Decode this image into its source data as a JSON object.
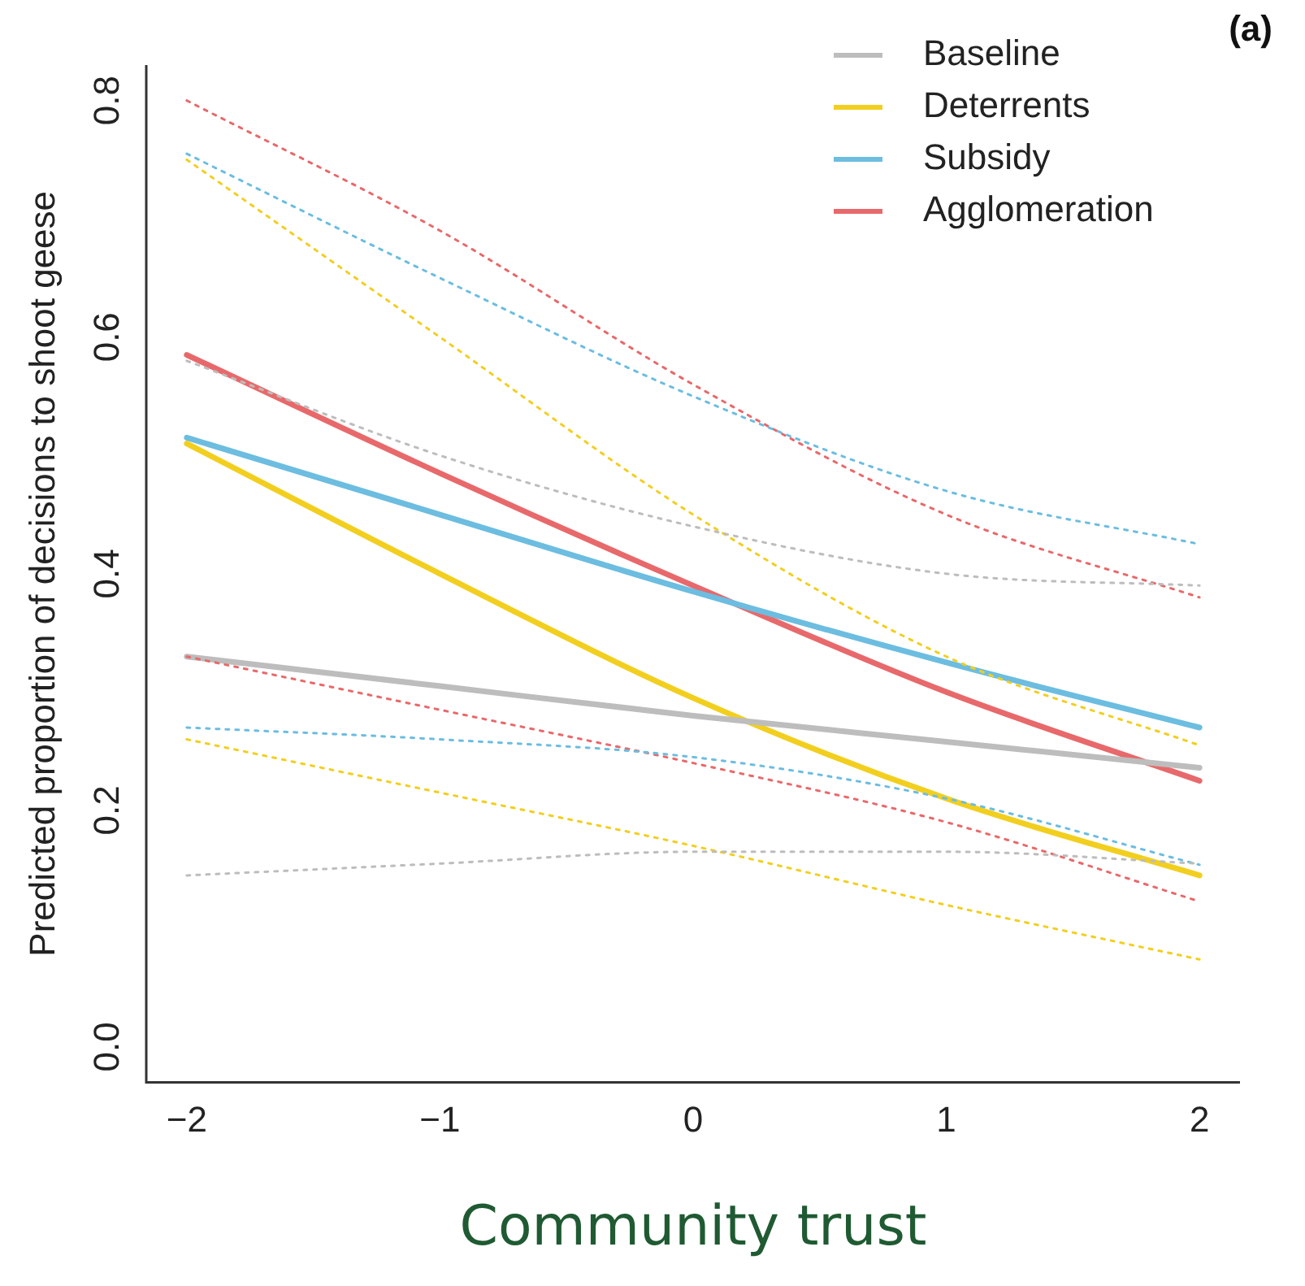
{
  "chart_data": {
    "type": "line",
    "xlabel": "Community trust",
    "ylabel": "Predicted proportion of decisions to shoot geese",
    "annotations": [
      "(a)"
    ],
    "x": [
      -2,
      -1,
      0,
      1,
      2
    ],
    "series": [
      {
        "name": "Baseline",
        "color": "#bdbdbd",
        "values": [
          0.33,
          0.305,
          0.28,
          0.258,
          0.236
        ]
      },
      {
        "name": "Deterrents",
        "color": "#f2cf1f",
        "values": [
          0.51,
          0.4,
          0.295,
          0.21,
          0.145
        ]
      },
      {
        "name": "Subsidy",
        "color": "#6cbde0",
        "values": [
          0.515,
          0.45,
          0.385,
          0.325,
          0.27
        ]
      },
      {
        "name": "Agglomeration",
        "color": "#e8696b",
        "values": [
          0.585,
          0.485,
          0.39,
          0.3,
          0.225
        ]
      },
      {
        "color": "#bdbdbd",
        "line_style": "dotted",
        "values": [
          0.145,
          0.155,
          0.165,
          0.165,
          0.155
        ]
      },
      {
        "color": "#bdbdbd",
        "line_style": "dotted",
        "values": [
          0.58,
          0.5,
          0.44,
          0.4,
          0.39
        ]
      },
      {
        "color": "#f2cf1f",
        "line_style": "dotted",
        "values": [
          0.26,
          0.215,
          0.17,
          0.12,
          0.074
        ]
      },
      {
        "color": "#f2cf1f",
        "line_style": "dotted",
        "values": [
          0.75,
          0.6,
          0.45,
          0.33,
          0.255
        ]
      },
      {
        "color": "#6cbde0",
        "line_style": "dotted",
        "values": [
          0.27,
          0.26,
          0.245,
          0.21,
          0.154
        ]
      },
      {
        "color": "#6cbde0",
        "line_style": "dotted",
        "values": [
          0.755,
          0.65,
          0.55,
          0.47,
          0.425
        ]
      },
      {
        "color": "#e8696b",
        "line_style": "dotted",
        "values": [
          0.33,
          0.285,
          0.24,
          0.19,
          0.123
        ]
      },
      {
        "color": "#e8696b",
        "line_style": "dotted",
        "values": [
          0.8,
          0.69,
          0.56,
          0.45,
          0.38
        ]
      }
    ],
    "xlim": [
      -2.16,
      2.16
    ],
    "xticks": [
      {
        "value": -2,
        "label": "−2"
      },
      {
        "value": -1,
        "label": "−1"
      },
      0,
      1,
      2
    ],
    "ylim": [
      -0.03,
      0.83
    ],
    "yticks": [
      {
        "value": 0,
        "label": "0.0"
      },
      0.2,
      0.4,
      0.6,
      0.8
    ],
    "grid": false,
    "legend": "top right",
    "marker": "none",
    "line_style": "solid"
  }
}
